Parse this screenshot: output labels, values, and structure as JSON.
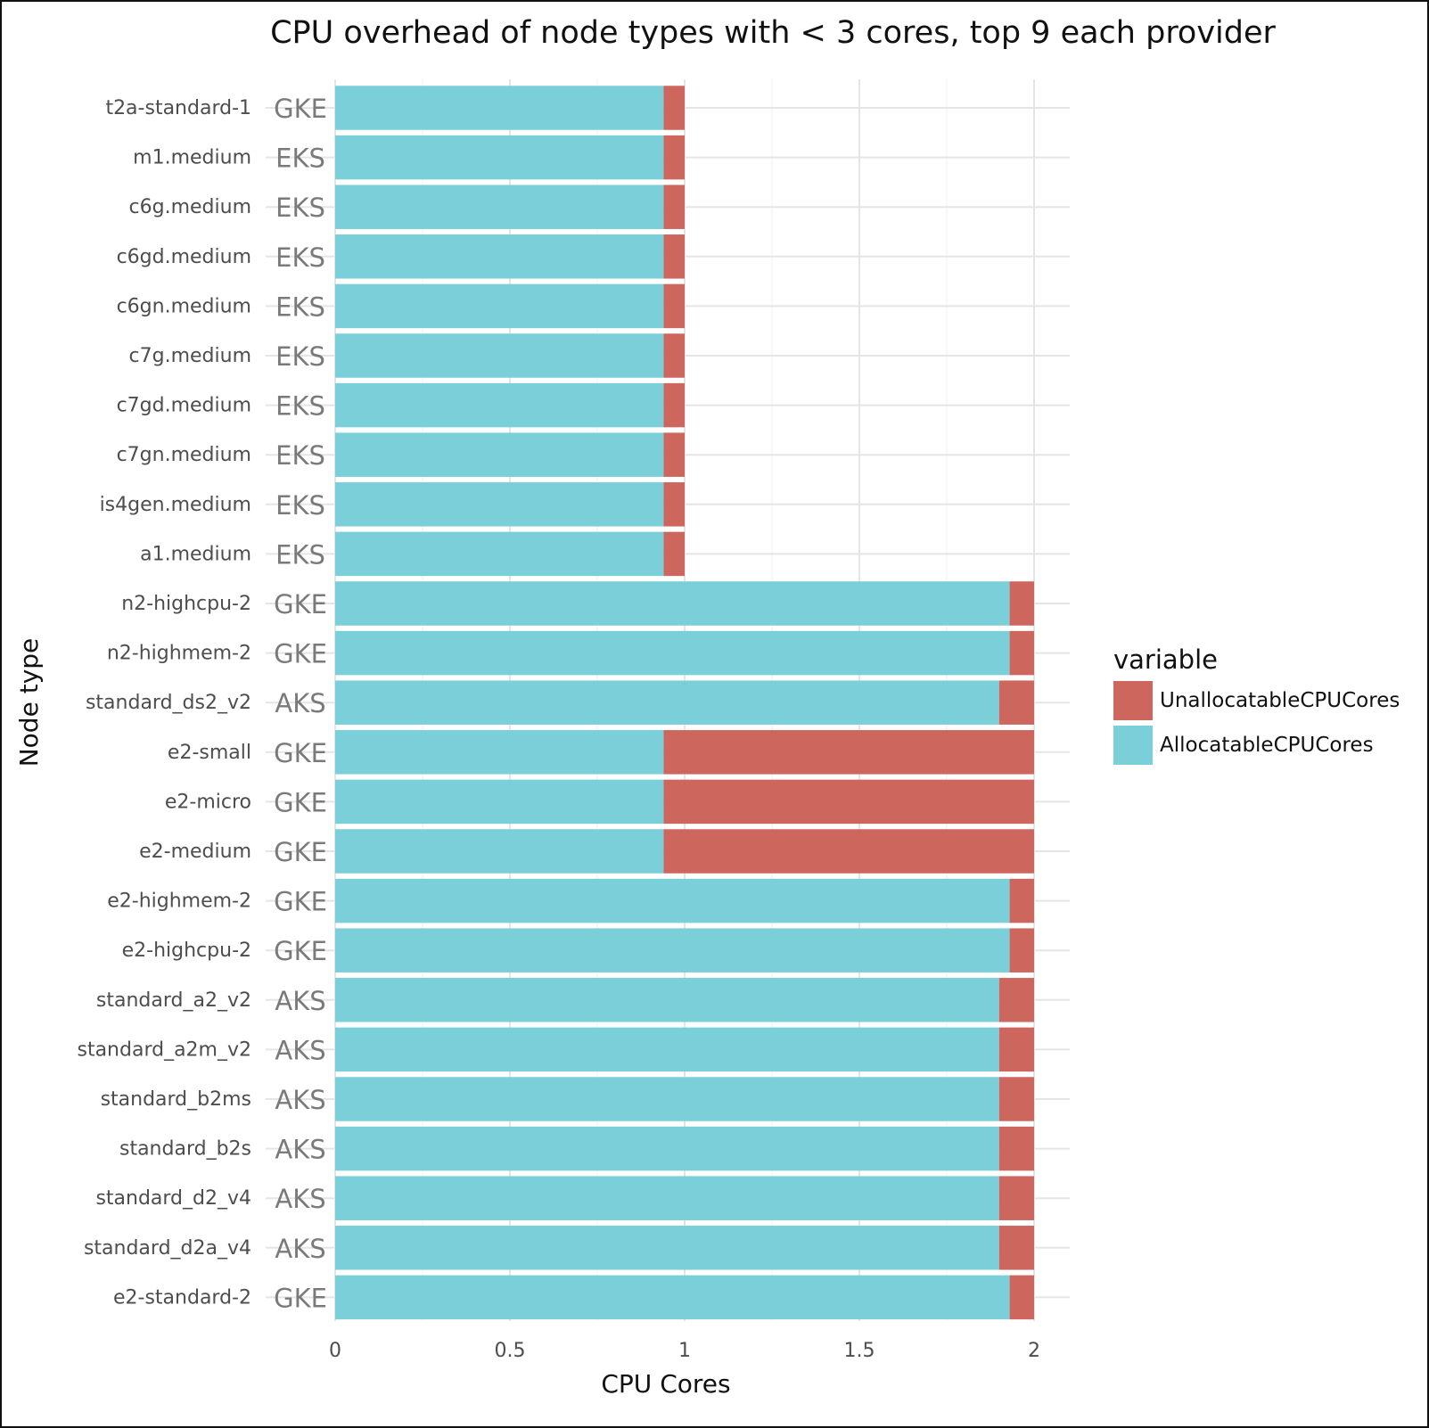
{
  "chart_data": {
    "type": "bar",
    "orientation": "horizontal",
    "stacked": true,
    "title": "CPU overhead of node types with < 3 cores, top 9 each provider",
    "xlabel": "CPU Cores",
    "ylabel": "Node type",
    "xlim": [
      0,
      2.1
    ],
    "x_ticks": [
      0,
      0.5,
      1,
      1.5,
      2
    ],
    "x_tick_labels": [
      "0",
      "0.5",
      "1",
      "1.5",
      "2"
    ],
    "grid": true,
    "legend": {
      "title": "variable",
      "placement": "right",
      "entries": [
        {
          "name": "UnallocatableCPUCores",
          "color": "#cd675d"
        },
        {
          "name": "AllocatableCPUCores",
          "color": "#7bcfd8"
        }
      ]
    },
    "categories": [
      "t2a-standard-1",
      "m1.medium",
      "c6g.medium",
      "c6gd.medium",
      "c6gn.medium",
      "c7g.medium",
      "c7gd.medium",
      "c7gn.medium",
      "is4gen.medium",
      "a1.medium",
      "n2-highcpu-2",
      "n2-highmem-2",
      "standard_ds2_v2",
      "e2-small",
      "e2-micro",
      "e2-medium",
      "e2-highmem-2",
      "e2-highcpu-2",
      "standard_a2_v2",
      "standard_a2m_v2",
      "standard_b2ms",
      "standard_b2s",
      "standard_d2_v4",
      "standard_d2a_v4",
      "e2-standard-2"
    ],
    "providers": [
      "GKE",
      "EKS",
      "EKS",
      "EKS",
      "EKS",
      "EKS",
      "EKS",
      "EKS",
      "EKS",
      "EKS",
      "GKE",
      "GKE",
      "AKS",
      "GKE",
      "GKE",
      "GKE",
      "GKE",
      "GKE",
      "AKS",
      "AKS",
      "AKS",
      "AKS",
      "AKS",
      "AKS",
      "GKE"
    ],
    "series": [
      {
        "name": "AllocatableCPUCores",
        "values": [
          0.94,
          0.94,
          0.94,
          0.94,
          0.94,
          0.94,
          0.94,
          0.94,
          0.94,
          0.94,
          1.93,
          1.93,
          1.9,
          0.94,
          0.94,
          0.94,
          1.93,
          1.93,
          1.9,
          1.9,
          1.9,
          1.9,
          1.9,
          1.9,
          1.93
        ]
      },
      {
        "name": "UnallocatableCPUCores",
        "values": [
          0.06,
          0.06,
          0.06,
          0.06,
          0.06,
          0.06,
          0.06,
          0.06,
          0.06,
          0.06,
          0.07,
          0.07,
          0.1,
          1.06,
          1.06,
          1.06,
          0.07,
          0.07,
          0.1,
          0.1,
          0.1,
          0.1,
          0.1,
          0.1,
          0.07
        ]
      }
    ]
  }
}
